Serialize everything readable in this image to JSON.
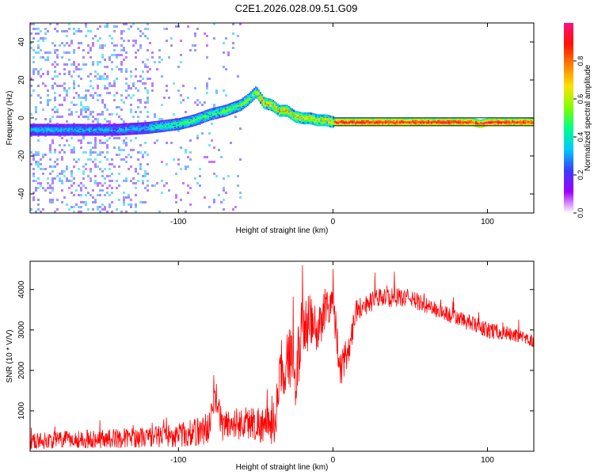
{
  "title": "C2E1.2026.028.09.51.G09",
  "chart_data": [
    {
      "type": "heatmap",
      "name": "spectrogram",
      "xlabel": "Height of straight line (km)",
      "ylabel": "Frequency (Hz)",
      "xlim": [
        -196,
        130
      ],
      "ylim": [
        -50,
        50
      ],
      "xticks": [
        -100,
        0,
        100
      ],
      "xtick_labels": [
        "-100",
        "0",
        "100"
      ],
      "yticks": [
        -40,
        -20,
        0,
        20,
        40
      ],
      "ytick_labels": [
        "-40",
        "-20",
        "0",
        "20",
        "40"
      ],
      "grid": false,
      "ridge": {
        "x": [
          -196,
          -180,
          -160,
          -140,
          -120,
          -100,
          -90,
          -80,
          -70,
          -60,
          -55,
          -50,
          -45,
          -40,
          -35,
          -30,
          -25,
          -20,
          -15,
          -10,
          -5,
          0,
          10,
          20,
          40,
          60,
          80,
          90,
          95,
          100,
          110,
          130
        ],
        "y": [
          -6,
          -6,
          -6,
          -6,
          -5,
          -3,
          -1,
          2,
          4,
          7,
          10,
          14,
          8,
          7,
          4,
          4,
          1,
          0,
          0,
          -1,
          -1,
          -2,
          -2,
          -2,
          -2,
          -2,
          -2,
          -2,
          -3,
          -2,
          -2,
          -2
        ]
      }
    },
    {
      "type": "line",
      "name": "snr",
      "xlabel": "Height of straight line (km)",
      "ylabel": "SNR (10 * V/V)",
      "xlim": [
        -196,
        130
      ],
      "ylim": [
        0,
        4700
      ],
      "xticks": [
        -100,
        0,
        100
      ],
      "xtick_labels": [
        "-100",
        "0",
        "100"
      ],
      "yticks": [
        1000,
        2000,
        3000,
        4000
      ],
      "ytick_labels": [
        "1000",
        "2000",
        "3000",
        "4000"
      ],
      "color": "#ff0000",
      "envelope": {
        "x": [
          -196,
          -180,
          -160,
          -140,
          -120,
          -110,
          -100,
          -90,
          -80,
          -76,
          -72,
          -60,
          -50,
          -42,
          -38,
          -35,
          -32,
          -30,
          -28,
          -25,
          -20,
          -15,
          -10,
          -5,
          0,
          5,
          10,
          15,
          20,
          30,
          40,
          50,
          60,
          80,
          100,
          115,
          130
        ],
        "y": [
          250,
          280,
          300,
          320,
          350,
          380,
          400,
          450,
          600,
          1400,
          650,
          700,
          700,
          600,
          700,
          1600,
          2100,
          2300,
          2400,
          1700,
          3000,
          3200,
          2900,
          3600,
          3700,
          2000,
          2500,
          3500,
          3600,
          3800,
          3800,
          3800,
          3600,
          3300,
          3000,
          2900,
          2700
        ]
      },
      "noise_amplitude": {
        "x": [
          -196,
          -120,
          -100,
          -80,
          -60,
          -40,
          -30,
          -20,
          -10,
          0,
          20,
          60,
          100,
          130
        ],
        "y": [
          200,
          250,
          300,
          400,
          400,
          500,
          800,
          800,
          600,
          500,
          250,
          200,
          200,
          150
        ]
      }
    }
  ],
  "colorbar": {
    "label": "Normalized spectral amplitude",
    "range": [
      0,
      1
    ],
    "ticks": [
      0.0,
      0.2,
      0.4,
      0.6,
      0.8
    ],
    "tick_labels": [
      "0.0",
      "0.2",
      "0.4",
      "0.6",
      "0.8"
    ],
    "stops": [
      "#ffffff",
      "#a000ff",
      "#3c3cff",
      "#00c8ff",
      "#00ff88",
      "#80ff00",
      "#ffe000",
      "#ff8000",
      "#ff1000",
      "#ff1080"
    ]
  }
}
